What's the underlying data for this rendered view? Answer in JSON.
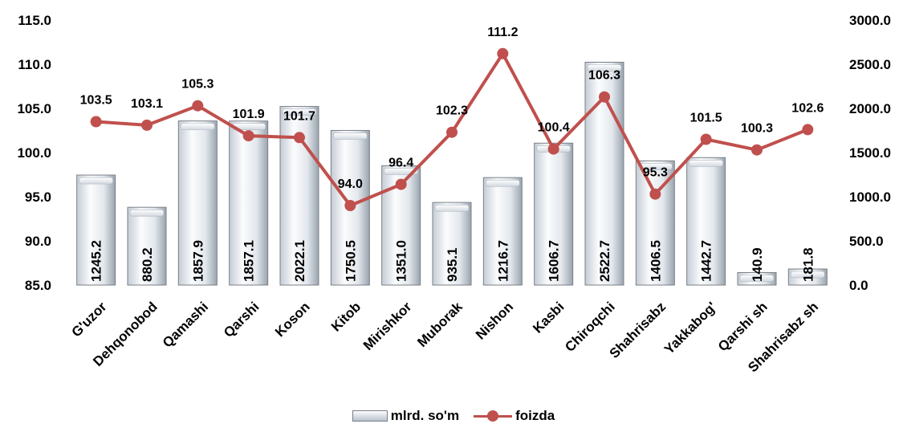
{
  "chart_data": {
    "type": "bar",
    "categories": [
      "G'uzor",
      "Dehqonobod",
      "Qamashi",
      "Qarshi",
      "Koson",
      "Kitob",
      "Mirishkor",
      "Muborak",
      "Nishon",
      "Kasbi",
      "Chiroqchi",
      "Shahrisabz",
      "Yakkabog'",
      "Qarshi sh",
      "Shahrisabz sh"
    ],
    "series": [
      {
        "name": "mlrd. so'm",
        "type": "bar",
        "axis": "right",
        "values": [
          1245.2,
          880.2,
          1857.9,
          1857.1,
          2022.1,
          1750.5,
          1351.0,
          935.1,
          1216.7,
          1606.7,
          2522.7,
          1406.5,
          1442.7,
          140.9,
          181.8
        ],
        "labels": [
          "1245.2",
          "880.2",
          "1857.9",
          "1857.1",
          "2022.1",
          "1750.5",
          "1351.0",
          "935.1",
          "1216.7",
          "1606.7",
          "2522.7",
          "1406.5",
          "1442.7",
          "140.9",
          "181.8"
        ]
      },
      {
        "name": "foizda",
        "type": "line",
        "axis": "left",
        "color": "#c0504d",
        "values": [
          103.5,
          103.1,
          105.3,
          101.9,
          101.7,
          94.0,
          96.4,
          102.3,
          111.2,
          100.4,
          106.3,
          95.3,
          101.5,
          100.3,
          102.6
        ],
        "labels": [
          "103.5",
          "103.1",
          "105.3",
          "101.9",
          "101.7",
          "94.0",
          "96.4",
          "102.3",
          "111.2",
          "100.4",
          "106.3",
          "95.3",
          "101.5",
          "100.3",
          "102.6"
        ]
      }
    ],
    "y_left": {
      "ylim": [
        85,
        115
      ],
      "ticks": [
        "85.0",
        "90.0",
        "95.0",
        "100.0",
        "105.0",
        "110.0",
        "115.0"
      ]
    },
    "y_right": {
      "ylim": [
        0,
        3000
      ],
      "ticks": [
        "0.0",
        "500.0",
        "1000.0",
        "1500.0",
        "2000.0",
        "2500.0",
        "3000.0"
      ]
    },
    "grid": false,
    "legend_position": "bottom"
  },
  "colors": {
    "line": "#c0504d",
    "bar_top": "#fdfdfe",
    "bar_bottom": "#b9c2cc",
    "bar_edge": "#7a7f86"
  }
}
